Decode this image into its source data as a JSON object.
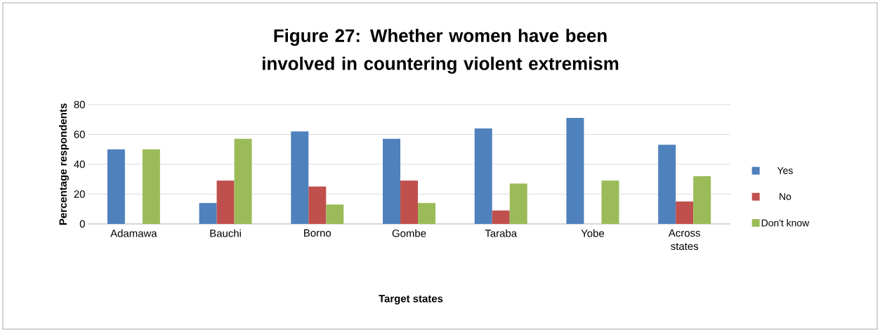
{
  "chart_data": {
    "type": "bar",
    "title": "Figure 27: Whether women have been involved in countering violent extremism",
    "xlabel": "Target states",
    "ylabel": "Percentage respondents",
    "categories": [
      "Adamawa",
      "Bauchi",
      "Borno",
      "Gombe",
      "Taraba",
      "Yobe",
      "Across states"
    ],
    "series": [
      {
        "name": "Yes",
        "color": "#4f81bd",
        "values": [
          50,
          14,
          62,
          57,
          64,
          71,
          53
        ]
      },
      {
        "name": "No",
        "color": "#c0504d",
        "values": [
          0,
          29,
          25,
          29,
          9,
          0,
          15
        ]
      },
      {
        "name": "Don't know",
        "color": "#9bbb59",
        "values": [
          50,
          57,
          13,
          14,
          27,
          29,
          32
        ]
      }
    ],
    "ylim": [
      0,
      80
    ],
    "yticks": [
      0,
      20,
      40,
      60,
      80
    ],
    "grid": "y",
    "legend": "right"
  }
}
